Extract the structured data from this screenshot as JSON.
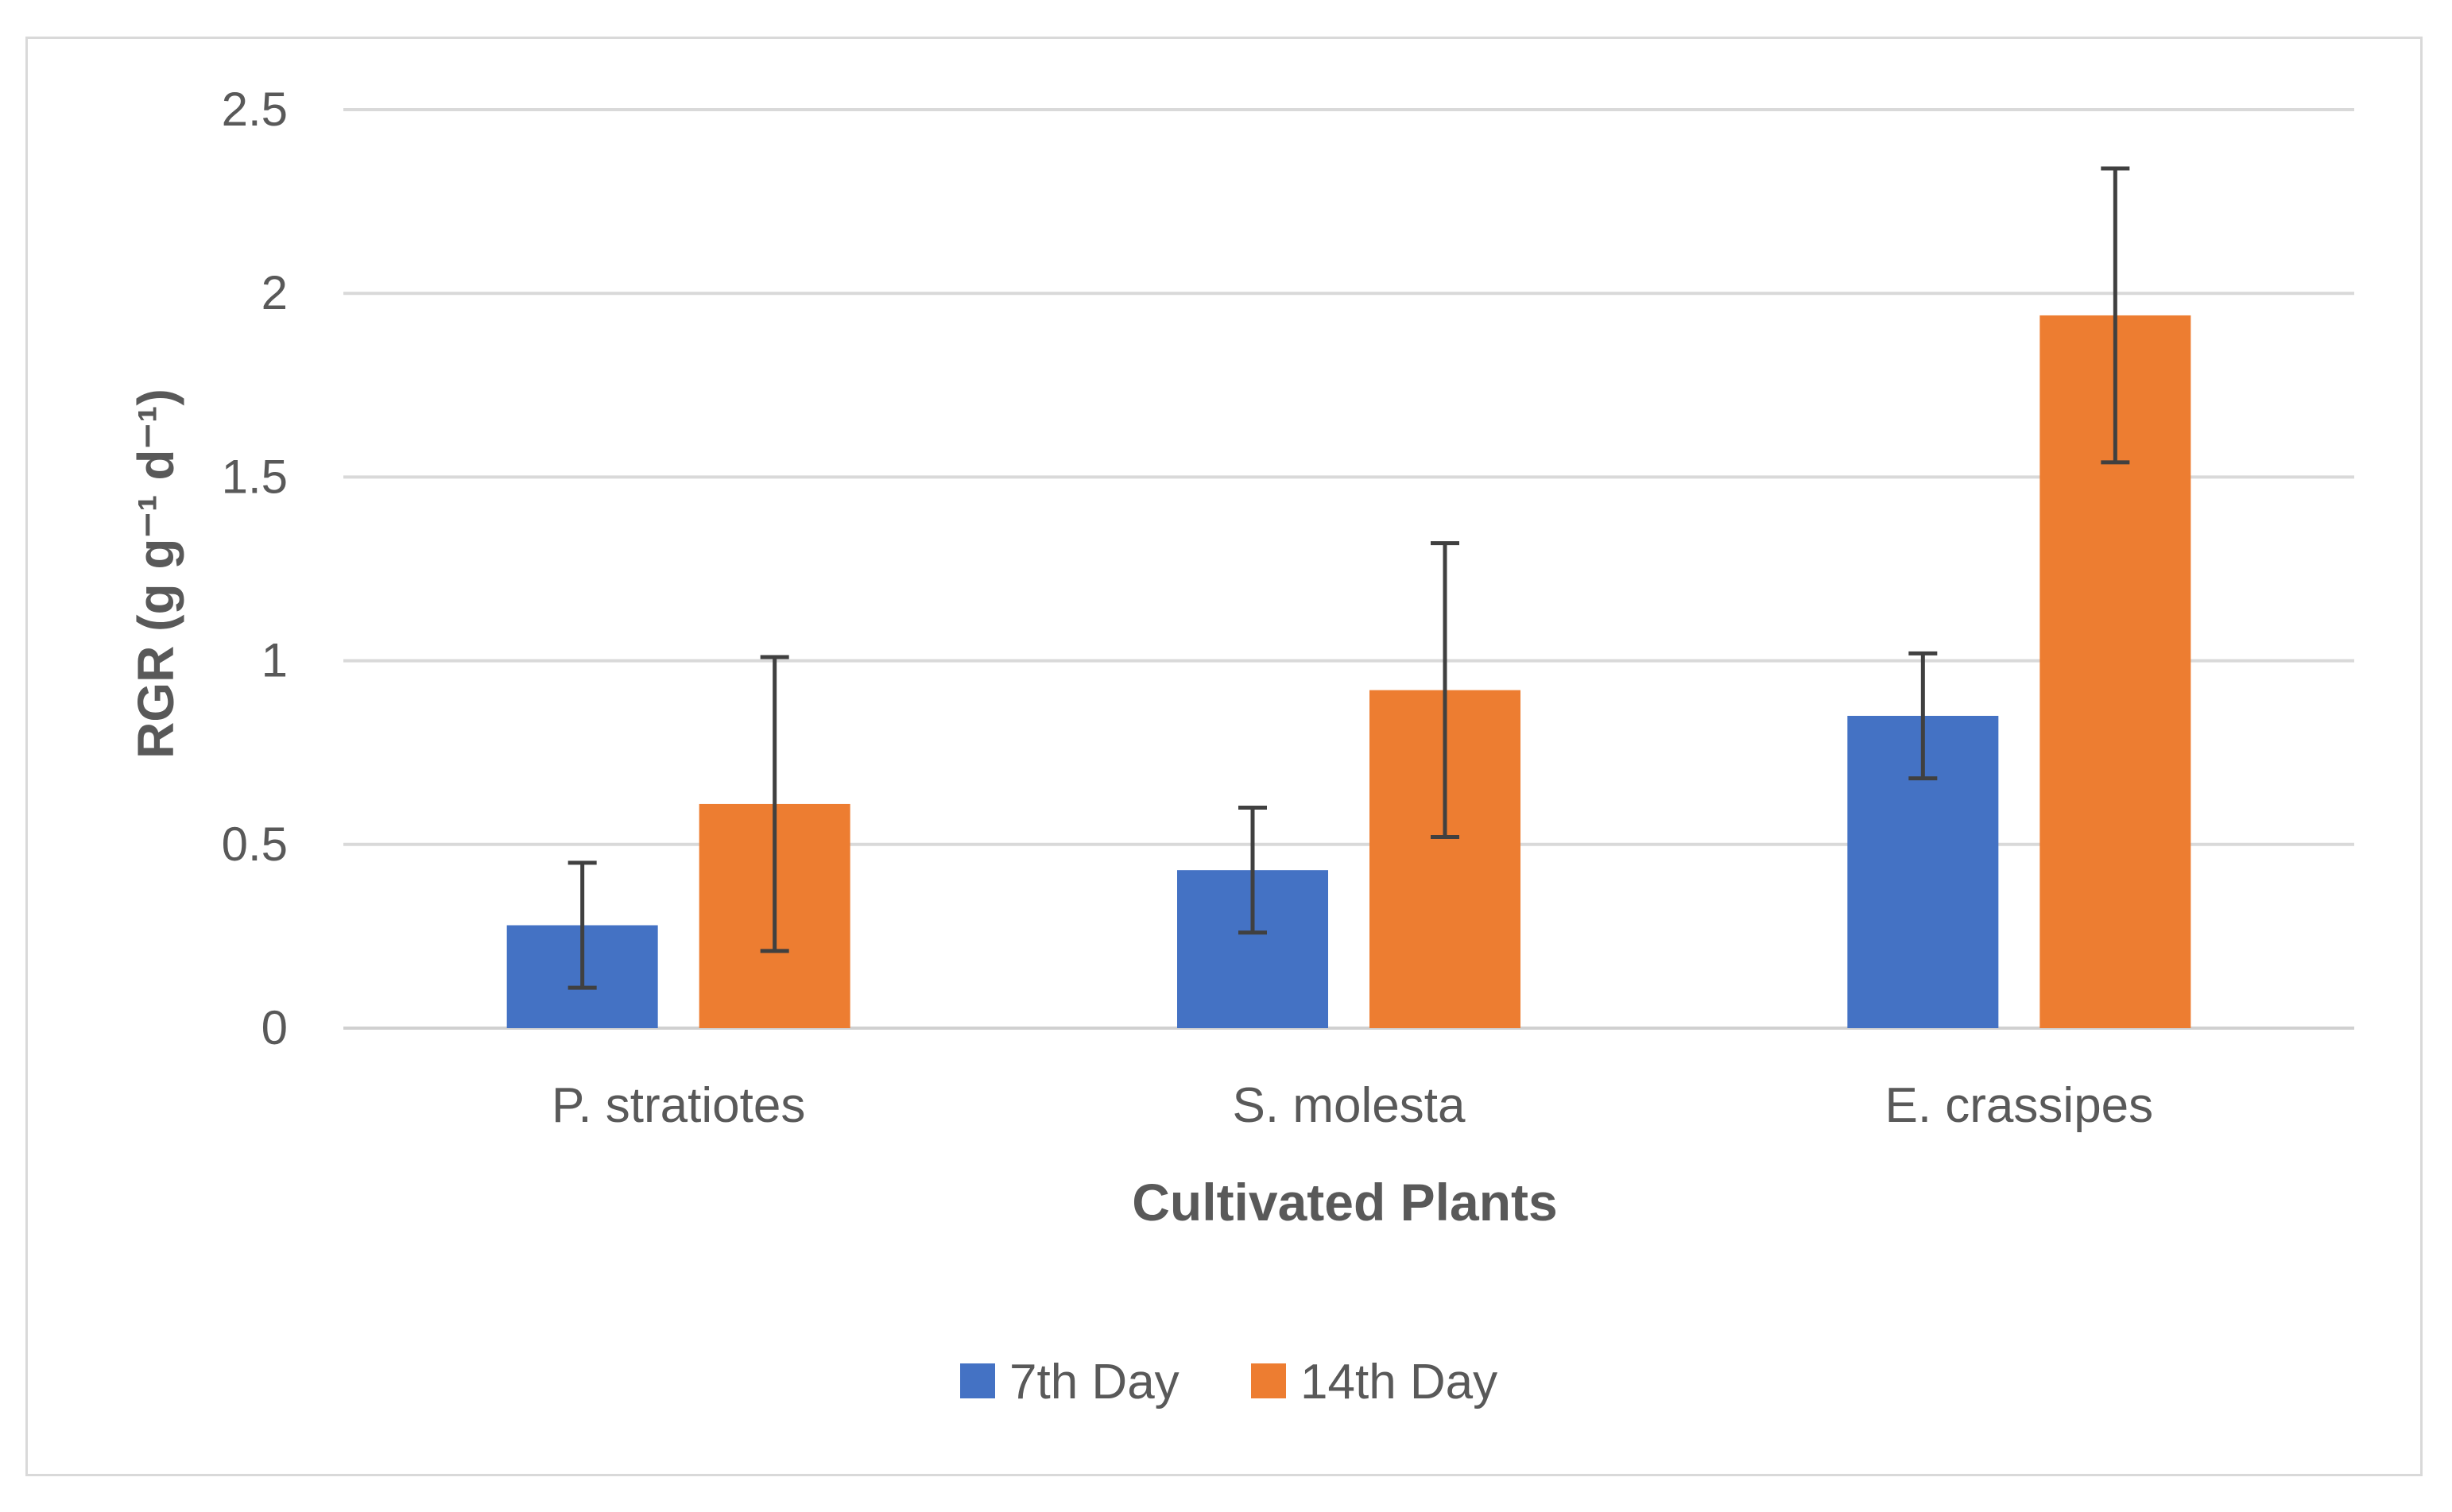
{
  "chart_data": {
    "type": "bar",
    "xlabel": "Cultivated Plants",
    "ylabel": "RGR (g g⁻¹ d⁻¹)",
    "ylim": [
      0,
      2.5
    ],
    "yticks": [
      "0",
      "0.5",
      "1",
      "1.5",
      "2",
      "2.5"
    ],
    "categories": [
      "P. stratiotes",
      "S. molesta",
      "E. crassipes"
    ],
    "series": [
      {
        "name": "7th Day",
        "color": "#4472c4",
        "values": [
          0.28,
          0.43,
          0.85
        ],
        "errors": [
          0.17,
          0.17,
          0.17
        ]
      },
      {
        "name": "14th Day",
        "color": "#ed7d31",
        "values": [
          0.61,
          0.92,
          1.94
        ],
        "errors": [
          0.4,
          0.4,
          0.4
        ]
      }
    ],
    "grid": true,
    "legend_position": "bottom"
  }
}
